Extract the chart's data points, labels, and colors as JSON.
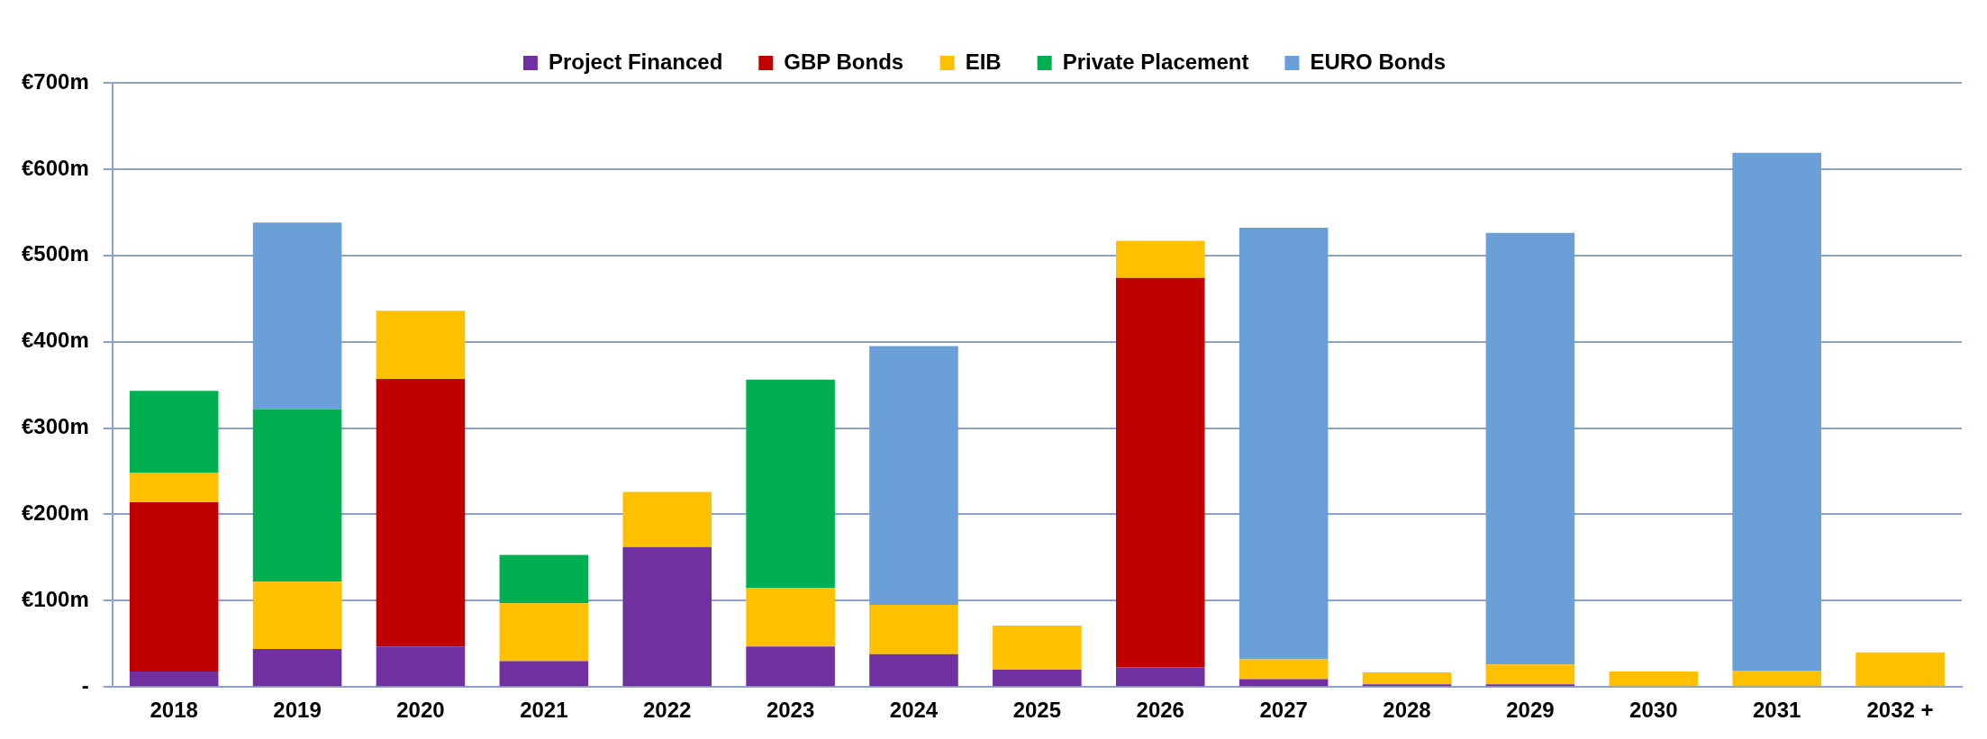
{
  "chart_data": {
    "type": "bar",
    "stacked": true,
    "categories": [
      "2018",
      "2019",
      "2020",
      "2021",
      "2022",
      "2023",
      "2024",
      "2025",
      "2026",
      "2027",
      "2028",
      "2029",
      "2030",
      "2031",
      "2032 +"
    ],
    "series": [
      {
        "name": "Project Financed",
        "color": "#7030a0",
        "values": [
          18,
          44,
          47,
          30,
          162,
          47,
          38,
          20,
          23,
          9,
          3,
          3,
          0,
          0,
          0
        ]
      },
      {
        "name": "GBP Bonds",
        "color": "#c00000",
        "values": [
          196,
          0,
          310,
          0,
          0,
          0,
          0,
          0,
          451,
          0,
          0,
          0,
          0,
          0,
          0
        ]
      },
      {
        "name": "EIB",
        "color": "#ffc000",
        "values": [
          34,
          78,
          79,
          67,
          64,
          68,
          57,
          51,
          43,
          23,
          14,
          23,
          18,
          19,
          40
        ]
      },
      {
        "name": "Private Placement",
        "color": "#00b050",
        "values": [
          95,
          200,
          0,
          56,
          0,
          241,
          0,
          0,
          0,
          0,
          0,
          0,
          0,
          0,
          0
        ]
      },
      {
        "name": "EURO Bonds",
        "color": "#6a9fd8",
        "values": [
          0,
          216,
          0,
          0,
          0,
          0,
          300,
          0,
          0,
          500,
          0,
          500,
          0,
          600,
          0
        ]
      }
    ],
    "ylim": [
      0,
      700
    ],
    "yticks": [
      {
        "value": 0,
        "label": "-"
      },
      {
        "value": 100,
        "label": "€100m"
      },
      {
        "value": 200,
        "label": "€200m"
      },
      {
        "value": 300,
        "label": "€300m"
      },
      {
        "value": 400,
        "label": "€400m"
      },
      {
        "value": 500,
        "label": "€500m"
      },
      {
        "value": 600,
        "label": "€600m"
      },
      {
        "value": 700,
        "label": "€700m"
      }
    ],
    "grid": "y",
    "legend": "top"
  }
}
